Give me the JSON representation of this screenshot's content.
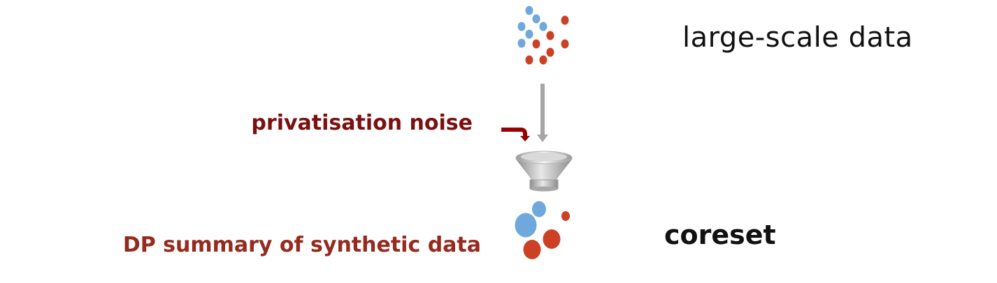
{
  "labels": {
    "input": "large-scale data",
    "noise": "privatisation noise",
    "output_desc": "DP summary of synthetic data",
    "output": "coreset"
  },
  "colors": {
    "blue_point": "#6fa8dc",
    "red_point": "#cc4125",
    "arrow_gray": "#a6a6a6",
    "noise_arrow": "#990000",
    "noise_text": "#7a1010",
    "dp_text": "#962a1e"
  },
  "icons": {
    "input_points": "scatter-dots",
    "process": "funnel-icon",
    "noise_arrow": "curved-arrow"
  }
}
